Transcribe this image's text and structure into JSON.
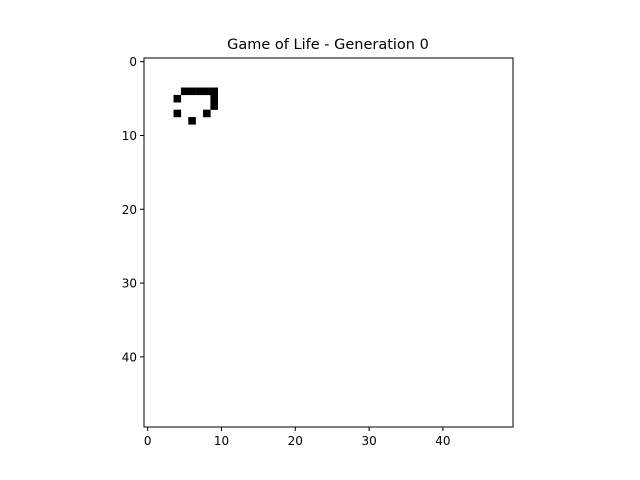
{
  "figure": {
    "title": "Game of Life - Generation 0"
  },
  "colors": {
    "background": "#ffffff",
    "alive": "#000000",
    "dead": "#ffffff",
    "axes": "#000000"
  },
  "chart_data": {
    "type": "heatmap",
    "title": "Game of Life - Generation 0",
    "xlabel": "",
    "ylabel": "",
    "grid": false,
    "rows": 50,
    "cols": 50,
    "xlim": [
      -0.5,
      49.5
    ],
    "ylim": [
      49.5,
      -0.5
    ],
    "x_ticks": [
      0,
      10,
      20,
      30,
      40
    ],
    "y_ticks": [
      0,
      10,
      20,
      30,
      40
    ],
    "alive_cells": [
      [
        4,
        5
      ],
      [
        4,
        6
      ],
      [
        4,
        7
      ],
      [
        4,
        8
      ],
      [
        4,
        9
      ],
      [
        5,
        4
      ],
      [
        5,
        9
      ],
      [
        6,
        9
      ],
      [
        7,
        4
      ],
      [
        7,
        8
      ],
      [
        8,
        6
      ]
    ]
  }
}
